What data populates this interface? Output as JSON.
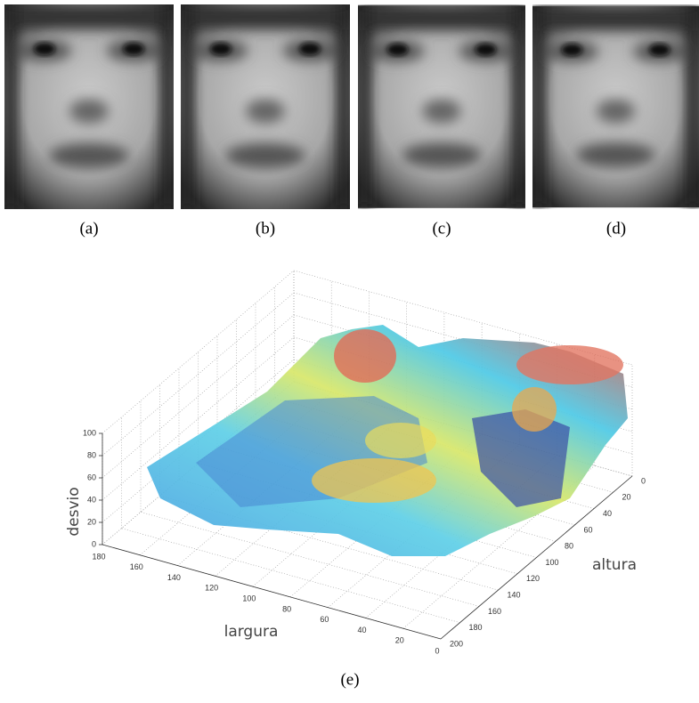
{
  "figure": {
    "panel_labels": [
      "(a)",
      "(b)",
      "(c)",
      "(d)"
    ],
    "plot_label": "(e)",
    "plot": {
      "z_label": "desvio",
      "x_label": "largura",
      "y_label": "altura",
      "zlim": [
        0,
        100
      ],
      "zticks": [
        0,
        20,
        40,
        60,
        80,
        100
      ],
      "xlim": [
        0,
        180
      ],
      "xticks": [
        0,
        20,
        40,
        60,
        80,
        100,
        120,
        140,
        160,
        180
      ],
      "ylim": [
        0,
        200
      ],
      "yticks": [
        0,
        20,
        40,
        60,
        80,
        100,
        120,
        140,
        160,
        180,
        200
      ]
    }
  }
}
